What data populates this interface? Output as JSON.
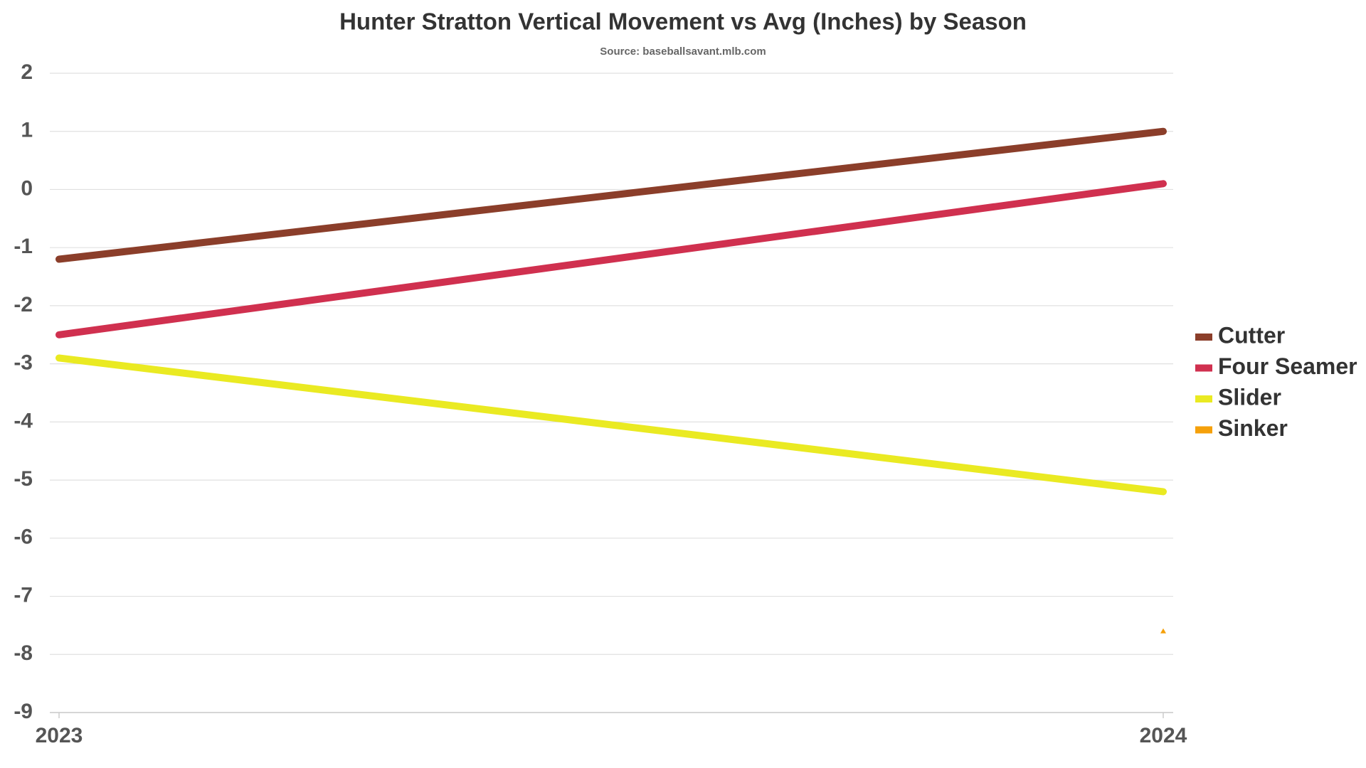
{
  "chart_data": {
    "type": "line",
    "title": "Hunter Stratton Vertical Movement vs Avg (Inches) by Season",
    "subtitle": "Source: baseballsavant.mlb.com",
    "categories": [
      "2023",
      "2024"
    ],
    "series": [
      {
        "name": "Cutter",
        "color": "#8b3e2a",
        "values": [
          -1.2,
          1.0
        ]
      },
      {
        "name": "Four Seamer",
        "color": "#d0304f",
        "values": [
          -2.5,
          0.1
        ]
      },
      {
        "name": "Slider",
        "color": "#eaea22",
        "values": [
          -2.9,
          -5.2
        ]
      },
      {
        "name": "Sinker",
        "color": "#f5a00a",
        "values": [
          null,
          -7.6
        ]
      }
    ],
    "ylim": [
      -9,
      2
    ],
    "yticks": [
      -9,
      -8,
      -7,
      -6,
      -5,
      -4,
      -3,
      -2,
      -1,
      0,
      1,
      2
    ],
    "grid": true,
    "legend": "right"
  }
}
